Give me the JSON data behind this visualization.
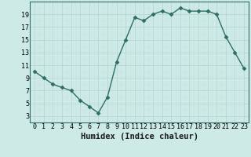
{
  "x": [
    0,
    1,
    2,
    3,
    4,
    5,
    6,
    7,
    8,
    9,
    10,
    11,
    12,
    13,
    14,
    15,
    16,
    17,
    18,
    19,
    20,
    21,
    22,
    23
  ],
  "y": [
    10.0,
    9.0,
    8.0,
    7.5,
    7.0,
    5.5,
    4.5,
    3.5,
    6.0,
    11.5,
    15.0,
    18.5,
    18.0,
    19.0,
    19.5,
    19.0,
    20.0,
    19.5,
    19.5,
    19.5,
    19.0,
    15.5,
    13.0,
    10.5
  ],
  "line_color": "#2e6e65",
  "marker": "D",
  "marker_size": 2.5,
  "background_color": "#ceeae7",
  "grid_major_color": "#b8d8d4",
  "grid_minor_color": "#c8e4e0",
  "xlabel": "Humidex (Indice chaleur)",
  "xlim": [
    -0.5,
    23.5
  ],
  "ylim": [
    2,
    20.5
  ],
  "yticks": [
    3,
    5,
    7,
    9,
    11,
    13,
    15,
    17,
    19
  ],
  "xticks": [
    0,
    1,
    2,
    3,
    4,
    5,
    6,
    7,
    8,
    9,
    10,
    11,
    12,
    13,
    14,
    15,
    16,
    17,
    18,
    19,
    20,
    21,
    22,
    23
  ],
  "xlabel_fontsize": 7.5,
  "tick_fontsize": 6.0,
  "line_width": 1.0,
  "spine_color": "#2e6e65"
}
